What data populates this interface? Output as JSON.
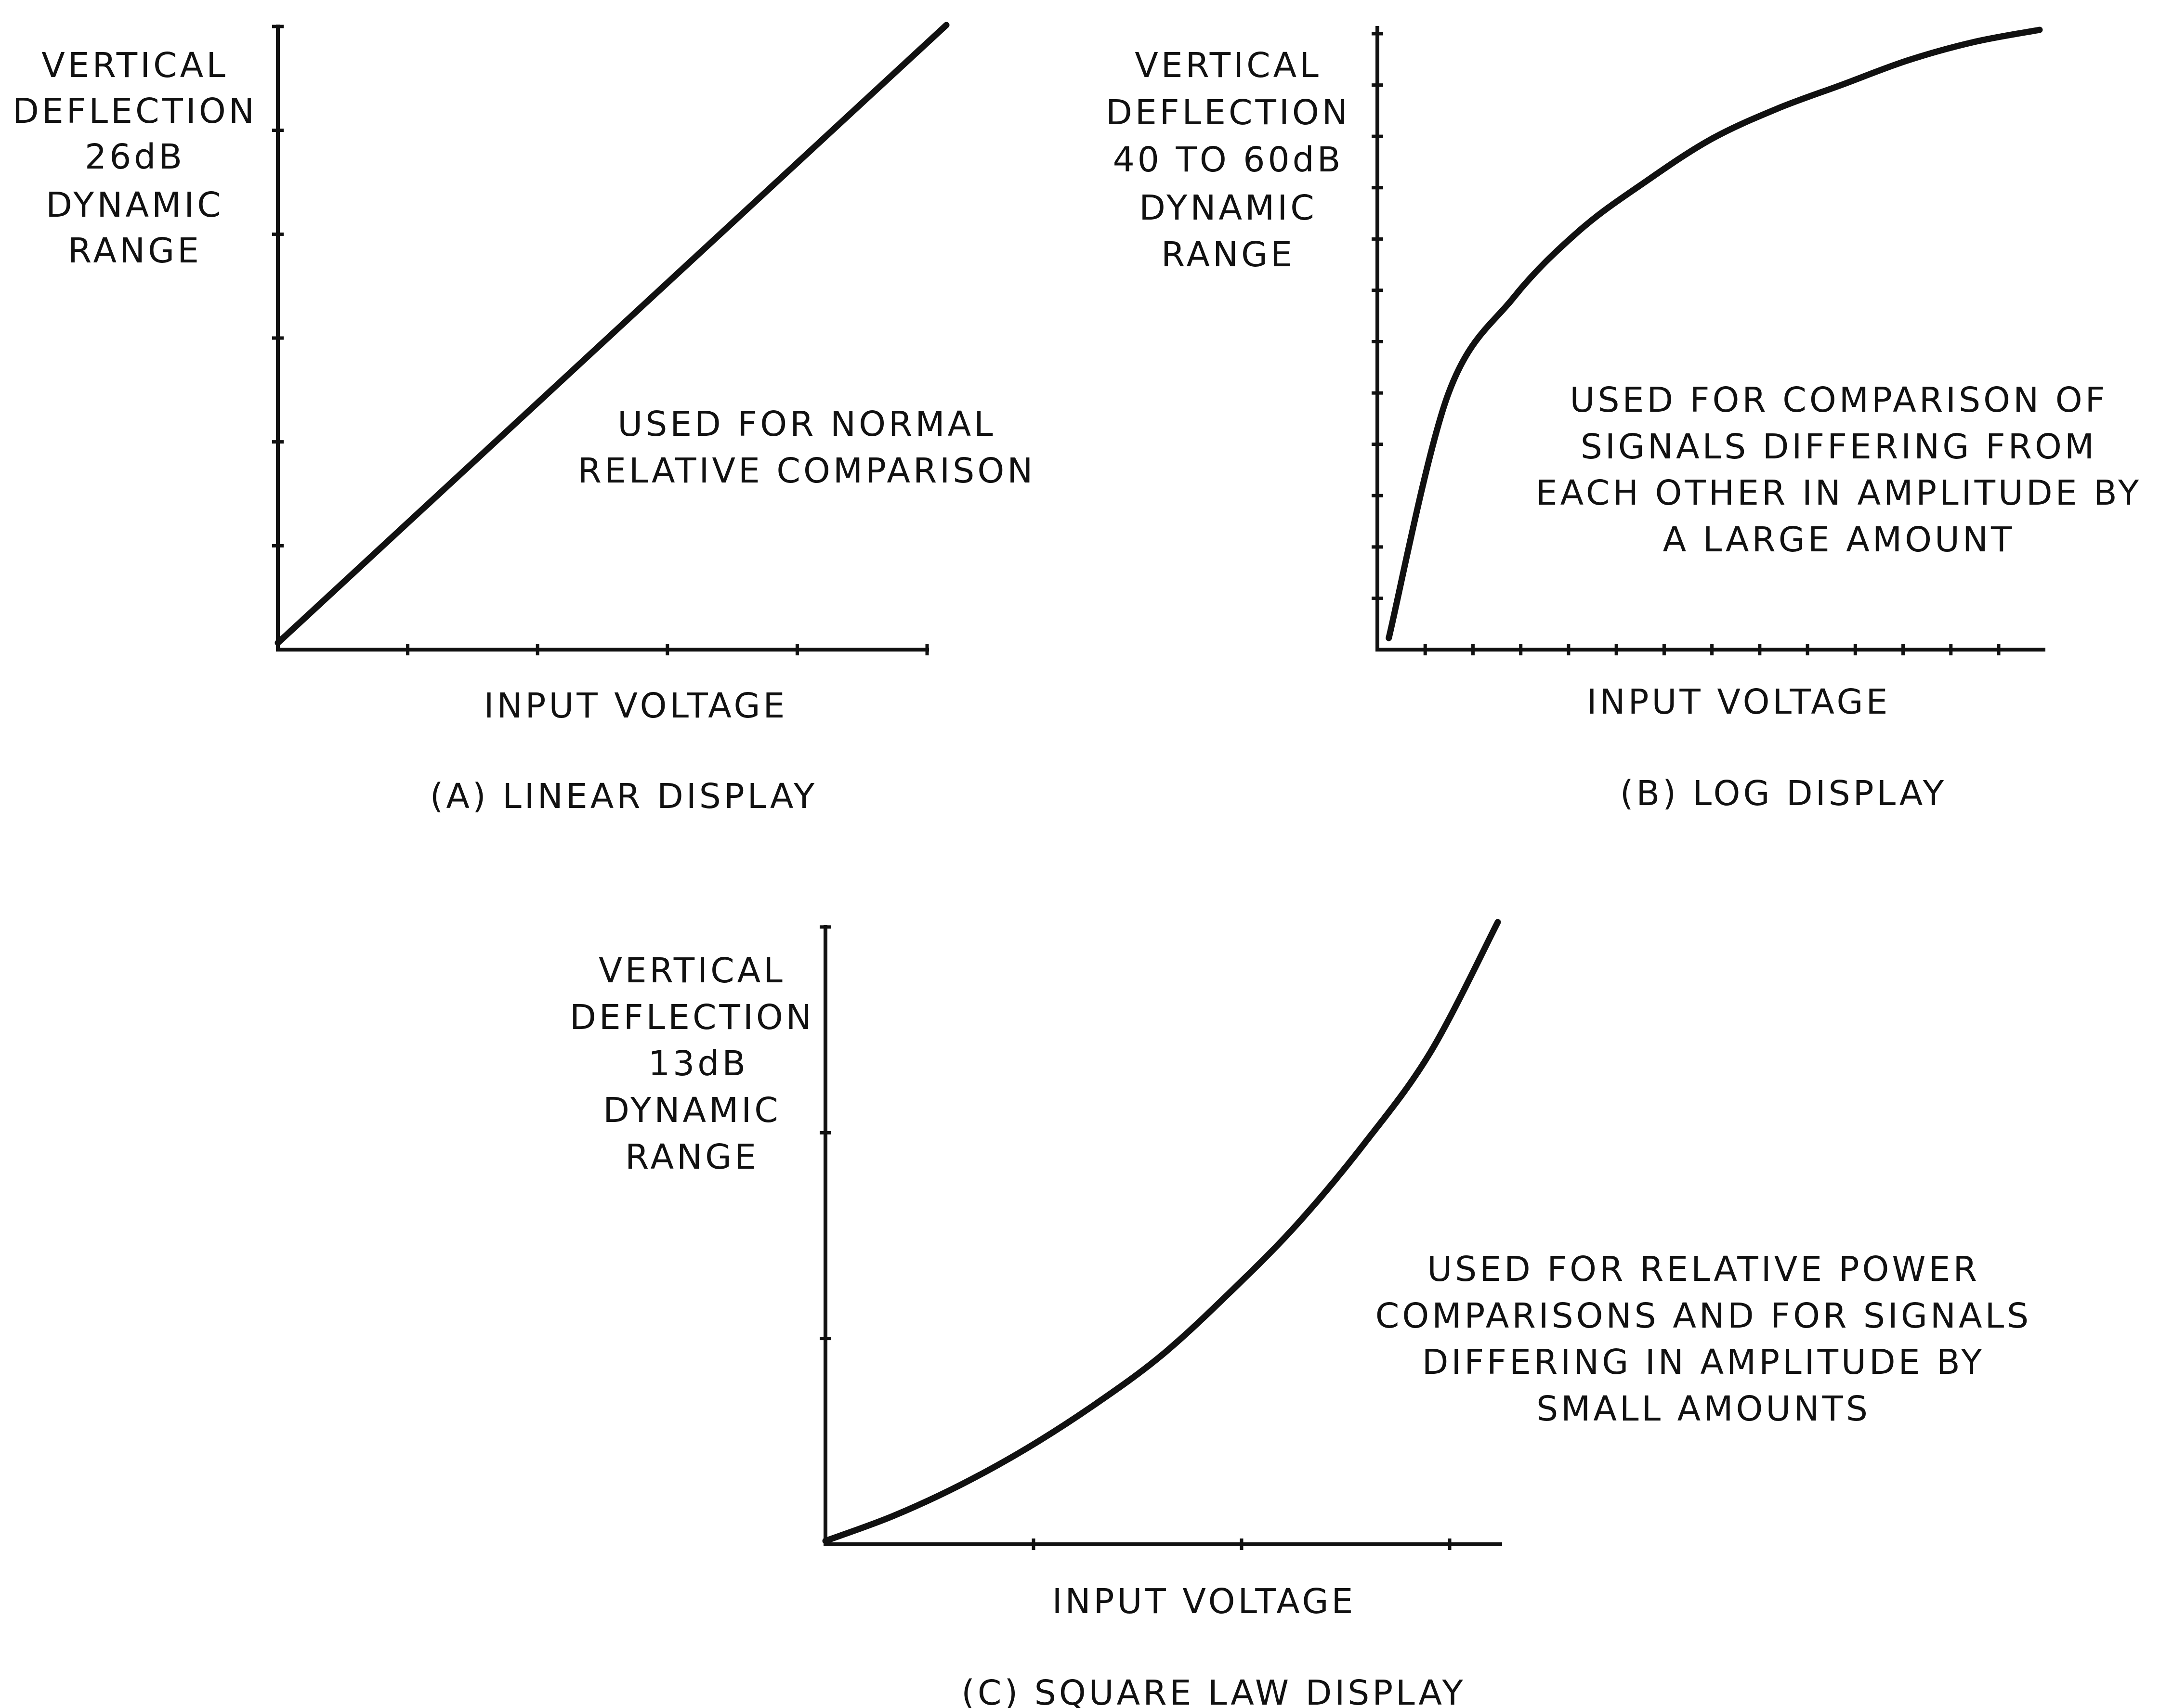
{
  "chart_data": [
    {
      "type": "line",
      "title": "(A) LINEAR DISPLAY",
      "xlabel": "INPUT VOLTAGE",
      "ylabel": [
        "VERTICAL",
        "DEFLECTION",
        "26dB",
        "DYNAMIC",
        "RANGE"
      ],
      "annotation": [
        "USED FOR NORMAL",
        "RELATIVE COMPARISON"
      ],
      "curve_shape": "linear",
      "series": [
        {
          "x": [
            0,
            0.2,
            0.4,
            0.6,
            0.8,
            1.0
          ],
          "y": [
            0,
            0.2,
            0.4,
            0.6,
            0.8,
            1.0
          ]
        }
      ],
      "xlim": [
        0,
        1
      ],
      "ylim": [
        0,
        1
      ],
      "x_ticks": 5,
      "y_ticks": 6,
      "grid": false
    },
    {
      "type": "line",
      "title": "(B) LOG DISPLAY",
      "xlabel": "INPUT VOLTAGE",
      "ylabel": [
        "VERTICAL",
        "DEFLECTION",
        "40 TO 60dB",
        "DYNAMIC",
        "RANGE"
      ],
      "annotation": [
        "USED FOR COMPARISON OF",
        "SIGNALS DIFFERING FROM",
        "EACH OTHER IN AMPLITUDE BY",
        "A LARGE AMOUNT"
      ],
      "curve_shape": "logarithmic",
      "series": [
        {
          "x": [
            0.01,
            0.1,
            0.2,
            0.3,
            0.4,
            0.5,
            0.6,
            0.7,
            0.8,
            0.9,
            1.0
          ],
          "y": [
            0.0,
            0.4,
            0.56,
            0.67,
            0.75,
            0.82,
            0.87,
            0.91,
            0.95,
            0.98,
            1.0
          ]
        }
      ],
      "xlim": [
        0,
        1
      ],
      "ylim": [
        0,
        1
      ],
      "x_ticks": 13,
      "y_ticks": 12,
      "grid": false
    },
    {
      "type": "line",
      "title": "(C) SQUARE LAW DISPLAY",
      "xlabel": "INPUT VOLTAGE",
      "ylabel": [
        "VERTICAL",
        "DEFLECTION",
        "13dB",
        "DYNAMIC",
        "RANGE"
      ],
      "annotation": [
        "USED FOR RELATIVE POWER",
        "COMPARISONS AND FOR SIGNALS",
        "DIFFERING IN AMPLITUDE BY",
        "SMALL AMOUNTS"
      ],
      "curve_shape": "square-law",
      "series": [
        {
          "x": [
            0,
            0.1,
            0.2,
            0.3,
            0.4,
            0.5,
            0.6,
            0.7,
            0.8,
            0.9,
            1.0
          ],
          "y": [
            0,
            0.04,
            0.09,
            0.15,
            0.22,
            0.3,
            0.4,
            0.51,
            0.64,
            0.79,
            1.0
          ]
        }
      ],
      "xlim": [
        0,
        1
      ],
      "ylim": [
        0,
        1
      ],
      "x_ticks": 3,
      "y_ticks": 3,
      "grid": false
    }
  ]
}
